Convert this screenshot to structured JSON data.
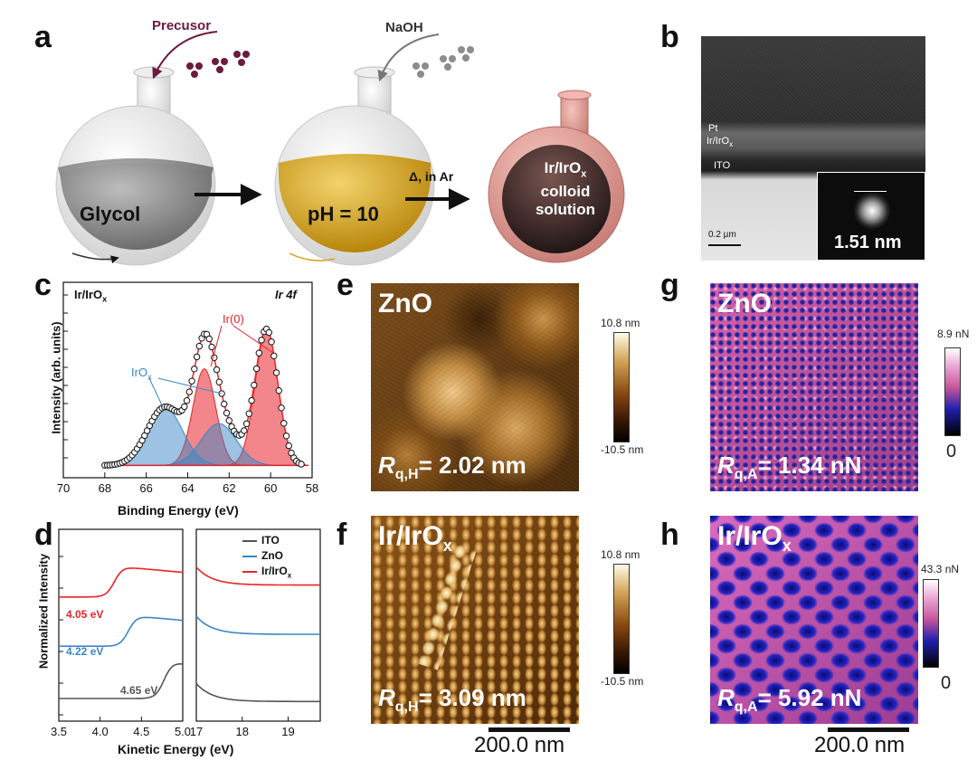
{
  "panels": {
    "a": {
      "label": "a",
      "precursor": "Precusor",
      "naoh": "NaOH",
      "flask1": "Glycol",
      "flask2": "pH = 10",
      "arrow3": "Δ, in Ar",
      "flask3_line1": "Ir/IrO",
      "flask3_line1_sub": "x",
      "flask3_line2": "colloid",
      "flask3_line3": "solution"
    },
    "b": {
      "label": "b",
      "layer1": "Pt",
      "layer2": "Ir/IrO",
      "layer2_sub": "x",
      "layer3": "ITO",
      "scalebar": "0.2 µm",
      "inset": "1.51 nm"
    },
    "c": {
      "label": "c",
      "sample": "Ir/IrO",
      "sample_sub": "x",
      "orbital": "Ir 4f",
      "peak_ir0": "Ir(0)",
      "peak_irox": "IrO",
      "peak_irox_sub": "x",
      "ylabel": "Intensity (arb. units)",
      "xlabel": "Binding Energy (eV)",
      "xticks": [
        "70",
        "68",
        "66",
        "64",
        "62",
        "60",
        "58"
      ]
    },
    "d": {
      "label": "d",
      "ylabel": "Normalized Intensity",
      "xlabel": "Kinetic Energy (eV)",
      "xticks_left": [
        "3.5",
        "4.0",
        "4.5",
        "5.0"
      ],
      "xticks_right": [
        "17",
        "18",
        "19"
      ],
      "legend": [
        {
          "name": "ITO",
          "color": "#555555"
        },
        {
          "name": "ZnO",
          "color": "#3b86c6"
        },
        {
          "name": "Ir/IrO",
          "sub": "x",
          "color": "#e8232a"
        }
      ],
      "labels": [
        {
          "text": "4.05 eV",
          "color": "#e8232a"
        },
        {
          "text": "4.22 eV",
          "color": "#3b86c6"
        },
        {
          "text": "4.65 eV",
          "color": "#555555"
        }
      ]
    },
    "e": {
      "label": "e",
      "material": "ZnO",
      "metric_main": "R",
      "metric_sub": "q,H",
      "metric_value": "= 2.02 nm",
      "cbar_top": "10.8 nm",
      "cbar_bottom": "-10.5 nm"
    },
    "f": {
      "label": "f",
      "material": "Ir/IrO",
      "material_sub": "x",
      "metric_main": "R",
      "metric_sub": "q,H",
      "metric_value": "= 3.09 nm",
      "cbar_top": "10.8 nm",
      "cbar_bottom": "-10.5 nm",
      "scalebar": "200.0 nm"
    },
    "g": {
      "label": "g",
      "material": "ZnO",
      "metric_main": "R",
      "metric_sub": "q,A",
      "metric_value": "= 1.34 nN",
      "cbar_top": "8.9 nN",
      "cbar_bottom": "0"
    },
    "h": {
      "label": "h",
      "material": "Ir/IrO",
      "material_sub": "x",
      "metric_main": "R",
      "metric_sub": "q,A",
      "metric_value": "= 5.92 nN",
      "cbar_top": "43.3 nN",
      "cbar_bottom": "0",
      "scalebar": "200.0 nm"
    }
  },
  "chart_data": [
    {
      "type": "line",
      "panel": "c",
      "xlabel": "Binding Energy (eV)",
      "ylabel": "Intensity (arb. units)",
      "xlim": [
        70,
        58
      ],
      "ylim": [
        0,
        1.1
      ],
      "series": [
        {
          "name": "Ir(0)",
          "color": "#e8232a",
          "components": [
            {
              "center": 63.2,
              "height": 0.6,
              "width": 0.55
            },
            {
              "center": 60.2,
              "height": 0.84,
              "width": 0.55
            }
          ]
        },
        {
          "name": "IrO",
          "color": "#3b86c6",
          "components": [
            {
              "center": 65.1,
              "height": 0.36,
              "width": 0.85
            },
            {
              "center": 62.5,
              "height": 0.26,
              "width": 0.85
            }
          ]
        }
      ],
      "background": 0.02
    },
    {
      "type": "line",
      "panel": "d",
      "xlabel": "Kinetic Energy (eV)",
      "ylabel": "Normalized Intensity",
      "series": [
        {
          "name": "ITO",
          "color": "#555555",
          "onset": 4.65,
          "offset": 0.0
        },
        {
          "name": "ZnO",
          "color": "#3b86c6",
          "onset": 4.22,
          "offset": 0.35
        },
        {
          "name": "Ir/IrOx",
          "color": "#e8232a",
          "onset": 4.05,
          "offset": 0.68
        }
      ]
    }
  ]
}
